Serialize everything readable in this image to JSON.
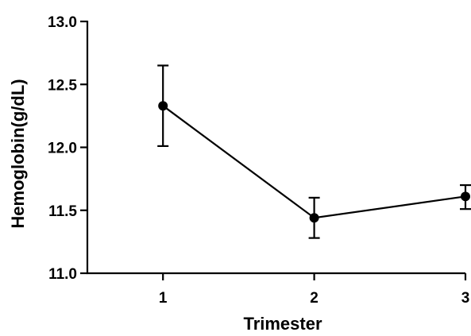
{
  "chart_data": {
    "type": "line",
    "title": "",
    "xlabel": "Trimester",
    "ylabel": "Hemoglobin(g/dL)",
    "x": [
      1,
      2,
      3
    ],
    "x_tick_labels": [
      "1",
      "2",
      "3"
    ],
    "y_ticks": [
      11.0,
      11.5,
      12.0,
      12.5,
      13.0
    ],
    "y_tick_labels": [
      "11.0",
      "11.5",
      "12.0",
      "12.5",
      "13.0"
    ],
    "xlim": [
      0.5,
      3
    ],
    "ylim": [
      11.0,
      13.0
    ],
    "grid": false,
    "legend": "none",
    "series": [
      {
        "values": [
          12.33,
          11.44,
          11.61
        ],
        "error_low": [
          12.01,
          11.28,
          11.51
        ],
        "error_high": [
          12.65,
          11.6,
          11.7
        ],
        "color": "#000000",
        "marker": "circle"
      }
    ]
  }
}
